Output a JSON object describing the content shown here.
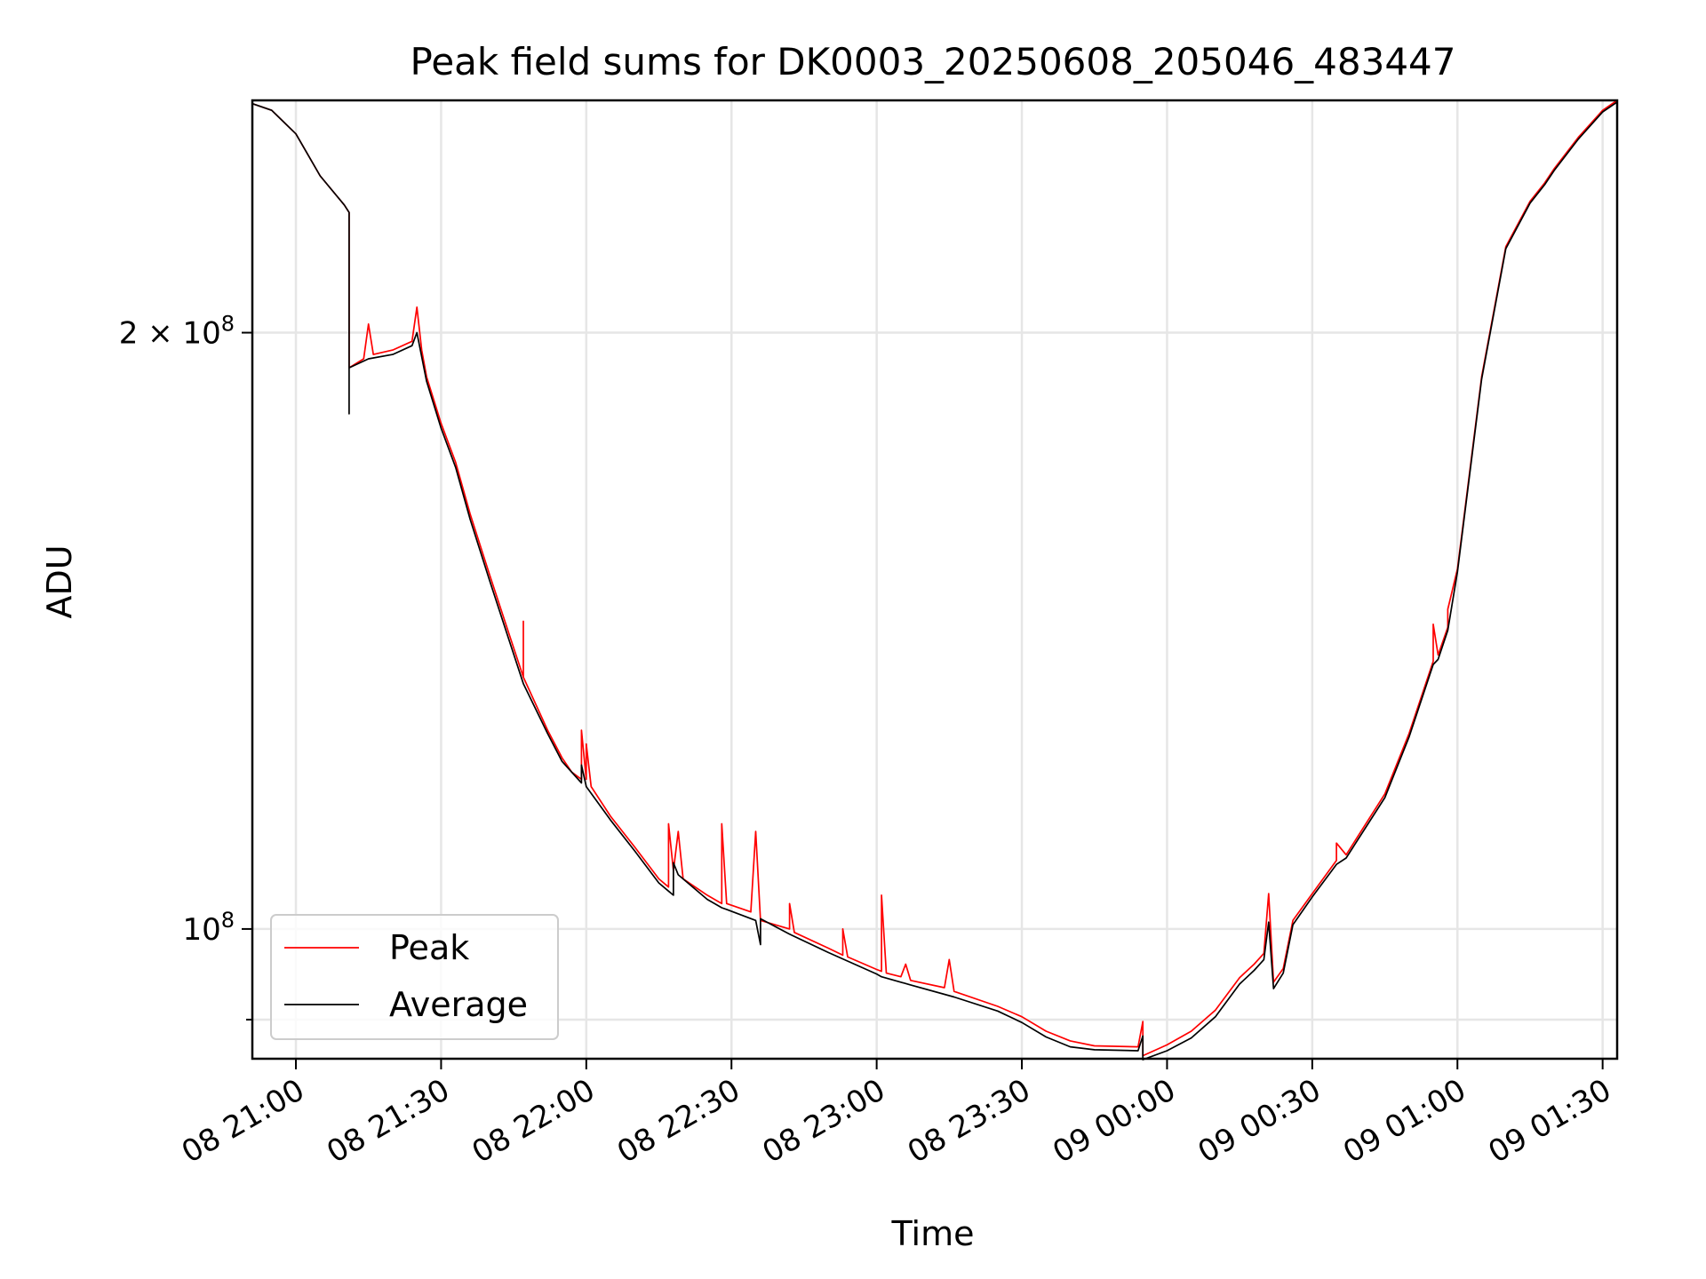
{
  "chart_data": {
    "type": "line",
    "title": "Peak field sums for DK0003_20250608_205046_483447",
    "xlabel": "Time",
    "ylabel": "ADU",
    "x_scale": "time",
    "y_scale": "log",
    "xlim": [
      "2025-06-08 20:51",
      "2025-06-09 01:33"
    ],
    "ylim": [
      86000000,
      262000000
    ],
    "grid": true,
    "legend": "lower-left",
    "x_ticks": [
      {
        "value": "2025-06-08 21:00",
        "label": "08 21:00"
      },
      {
        "value": "2025-06-08 21:30",
        "label": "08 21:30"
      },
      {
        "value": "2025-06-08 22:00",
        "label": "08 22:00"
      },
      {
        "value": "2025-06-08 22:30",
        "label": "08 22:30"
      },
      {
        "value": "2025-06-08 23:00",
        "label": "08 23:00"
      },
      {
        "value": "2025-06-08 23:30",
        "label": "08 23:30"
      },
      {
        "value": "2025-06-09 00:00",
        "label": "09 00:00"
      },
      {
        "value": "2025-06-09 00:30",
        "label": "09 00:30"
      },
      {
        "value": "2025-06-09 01:00",
        "label": "09 01:00"
      },
      {
        "value": "2025-06-09 01:30",
        "label": "09 01:30"
      }
    ],
    "y_ticks": [
      {
        "value": 100000000,
        "base": "10",
        "exp": "8",
        "coef": ""
      },
      {
        "value": 200000000,
        "base": "10",
        "exp": "8",
        "coef": "2 × "
      }
    ],
    "y_minor_ticks": [
      90000000
    ],
    "series": [
      {
        "name": "Peak",
        "color": "#ff0000",
        "points": [
          [
            "2025-06-08 20:51",
            261000000
          ],
          [
            "2025-06-08 20:55",
            259000000
          ],
          [
            "2025-06-08 21:00",
            252000000
          ],
          [
            "2025-06-08 21:05",
            240000000
          ],
          [
            "2025-06-08 21:10",
            232000000
          ],
          [
            "2025-06-08 21:11",
            230000000
          ],
          [
            "2025-06-08 21:11",
            192000000
          ],
          [
            "2025-06-08 21:14",
            194000000
          ],
          [
            "2025-06-08 21:15",
            202000000
          ],
          [
            "2025-06-08 21:16",
            195000000
          ],
          [
            "2025-06-08 21:20",
            196000000
          ],
          [
            "2025-06-08 21:24",
            198000000
          ],
          [
            "2025-06-08 21:25",
            206000000
          ],
          [
            "2025-06-08 21:26",
            196000000
          ],
          [
            "2025-06-08 21:27",
            190000000
          ],
          [
            "2025-06-08 21:30",
            180000000
          ],
          [
            "2025-06-08 21:33",
            172000000
          ],
          [
            "2025-06-08 21:36",
            162000000
          ],
          [
            "2025-06-08 21:40",
            151000000
          ],
          [
            "2025-06-08 21:44",
            141000000
          ],
          [
            "2025-06-08 21:47",
            134000000
          ],
          [
            "2025-06-08 21:47",
            143000000
          ],
          [
            "2025-06-08 21:47",
            134000000
          ],
          [
            "2025-06-08 21:52",
            126000000
          ],
          [
            "2025-06-08 21:55",
            122000000
          ],
          [
            "2025-06-08 21:57",
            120000000
          ],
          [
            "2025-06-08 21:59",
            119000000
          ],
          [
            "2025-06-08 21:59",
            126000000
          ],
          [
            "2025-06-08 22:00",
            119000000
          ],
          [
            "2025-06-08 22:00",
            124000000
          ],
          [
            "2025-06-08 22:01",
            118000000
          ],
          [
            "2025-06-08 22:05",
            114000000
          ],
          [
            "2025-06-08 22:10",
            110000000
          ],
          [
            "2025-06-08 22:15",
            106000000
          ],
          [
            "2025-06-08 22:17",
            105000000
          ],
          [
            "2025-06-08 22:17",
            113000000
          ],
          [
            "2025-06-08 22:18",
            107000000
          ],
          [
            "2025-06-08 22:19",
            112000000
          ],
          [
            "2025-06-08 22:20",
            106000000
          ],
          [
            "2025-06-08 22:25",
            104000000
          ],
          [
            "2025-06-08 22:28",
            103000000
          ],
          [
            "2025-06-08 22:28",
            113000000
          ],
          [
            "2025-06-08 22:29",
            103000000
          ],
          [
            "2025-06-08 22:34",
            102000000
          ],
          [
            "2025-06-08 22:35",
            112000000
          ],
          [
            "2025-06-08 22:36",
            101000000
          ],
          [
            "2025-06-08 22:42",
            100000000
          ],
          [
            "2025-06-08 22:42",
            103000000
          ],
          [
            "2025-06-08 22:43",
            99600000
          ],
          [
            "2025-06-08 22:50",
            97800000
          ],
          [
            "2025-06-08 22:53",
            97000000
          ],
          [
            "2025-06-08 22:53",
            100000000
          ],
          [
            "2025-06-08 22:54",
            96800000
          ],
          [
            "2025-06-08 23:00",
            95400000
          ],
          [
            "2025-06-08 23:01",
            95200000
          ],
          [
            "2025-06-08 23:01",
            104000000
          ],
          [
            "2025-06-08 23:02",
            95000000
          ],
          [
            "2025-06-08 23:05",
            94600000
          ],
          [
            "2025-06-08 23:06",
            96000000
          ],
          [
            "2025-06-08 23:07",
            94200000
          ],
          [
            "2025-06-08 23:14",
            93400000
          ],
          [
            "2025-06-08 23:15",
            96500000
          ],
          [
            "2025-06-08 23:16",
            93000000
          ],
          [
            "2025-06-08 23:25",
            91400000
          ],
          [
            "2025-06-08 23:30",
            90300000
          ],
          [
            "2025-06-08 23:35",
            88800000
          ],
          [
            "2025-06-08 23:40",
            87800000
          ],
          [
            "2025-06-08 23:45",
            87300000
          ],
          [
            "2025-06-08 23:54",
            87200000
          ],
          [
            "2025-06-08 23:55",
            89800000
          ],
          [
            "2025-06-08 23:55",
            86300000
          ],
          [
            "2025-06-09 00:00",
            87400000
          ],
          [
            "2025-06-09 00:05",
            88800000
          ],
          [
            "2025-06-09 00:10",
            91000000
          ],
          [
            "2025-06-09 00:15",
            94500000
          ],
          [
            "2025-06-09 00:18",
            96000000
          ],
          [
            "2025-06-09 00:20",
            97200000
          ],
          [
            "2025-06-09 00:21",
            104200000
          ],
          [
            "2025-06-09 00:22",
            94000000
          ],
          [
            "2025-06-09 00:24",
            95500000
          ],
          [
            "2025-06-09 00:26",
            101000000
          ],
          [
            "2025-06-09 00:30",
            104200000
          ],
          [
            "2025-06-09 00:35",
            108300000
          ],
          [
            "2025-06-09 00:35",
            110500000
          ],
          [
            "2025-06-09 00:37",
            109000000
          ],
          [
            "2025-06-09 00:45",
            117000000
          ],
          [
            "2025-06-09 00:50",
            125500000
          ],
          [
            "2025-06-09 00:55",
            136500000
          ],
          [
            "2025-06-09 00:55",
            142500000
          ],
          [
            "2025-06-09 00:56",
            137500000
          ],
          [
            "2025-06-09 00:58",
            142000000
          ],
          [
            "2025-06-09 00:58",
            145000000
          ],
          [
            "2025-06-09 01:00",
            152000000
          ],
          [
            "2025-06-09 01:05",
            190000000
          ],
          [
            "2025-06-09 01:10",
            221000000
          ],
          [
            "2025-06-09 01:15",
            233000000
          ],
          [
            "2025-06-09 01:18",
            238000000
          ],
          [
            "2025-06-09 01:20",
            242000000
          ],
          [
            "2025-06-09 01:25",
            251000000
          ],
          [
            "2025-06-09 01:30",
            259000000
          ],
          [
            "2025-06-09 01:33",
            262000000
          ]
        ]
      },
      {
        "name": "Average",
        "color": "#000000",
        "points": [
          [
            "2025-06-08 20:51",
            261000000
          ],
          [
            "2025-06-08 20:55",
            259000000
          ],
          [
            "2025-06-08 21:00",
            252000000
          ],
          [
            "2025-06-08 21:05",
            240000000
          ],
          [
            "2025-06-08 21:10",
            232000000
          ],
          [
            "2025-06-08 21:11",
            230000000
          ],
          [
            "2025-06-08 21:11",
            182000000
          ],
          [
            "2025-06-08 21:11",
            192000000
          ],
          [
            "2025-06-08 21:15",
            194000000
          ],
          [
            "2025-06-08 21:20",
            195000000
          ],
          [
            "2025-06-08 21:24",
            197000000
          ],
          [
            "2025-06-08 21:25",
            200000000
          ],
          [
            "2025-06-08 21:27",
            189000000
          ],
          [
            "2025-06-08 21:30",
            179000000
          ],
          [
            "2025-06-08 21:33",
            171000000
          ],
          [
            "2025-06-08 21:36",
            161000000
          ],
          [
            "2025-06-08 21:40",
            150000000
          ],
          [
            "2025-06-08 21:44",
            140000000
          ],
          [
            "2025-06-08 21:47",
            133000000
          ],
          [
            "2025-06-08 21:52",
            125500000
          ],
          [
            "2025-06-08 21:55",
            121500000
          ],
          [
            "2025-06-08 21:59",
            118500000
          ],
          [
            "2025-06-08 21:59",
            121000000
          ],
          [
            "2025-06-08 22:00",
            118000000
          ],
          [
            "2025-06-08 22:05",
            113500000
          ],
          [
            "2025-06-08 22:10",
            109500000
          ],
          [
            "2025-06-08 22:15",
            105500000
          ],
          [
            "2025-06-08 22:17",
            104500000
          ],
          [
            "2025-06-08 22:18",
            104000000
          ],
          [
            "2025-06-08 22:18",
            108000000
          ],
          [
            "2025-06-08 22:19",
            106500000
          ],
          [
            "2025-06-08 22:25",
            103500000
          ],
          [
            "2025-06-08 22:28",
            102500000
          ],
          [
            "2025-06-08 22:29",
            102300000
          ],
          [
            "2025-06-08 22:35",
            101000000
          ],
          [
            "2025-06-08 22:36",
            98200000
          ],
          [
            "2025-06-08 22:36",
            101200000
          ],
          [
            "2025-06-08 22:42",
            99400000
          ],
          [
            "2025-06-08 22:50",
            97300000
          ],
          [
            "2025-06-08 23:00",
            94900000
          ],
          [
            "2025-06-08 23:01",
            94600000
          ],
          [
            "2025-06-08 23:07",
            93700000
          ],
          [
            "2025-06-08 23:16",
            92400000
          ],
          [
            "2025-06-08 23:25",
            90900000
          ],
          [
            "2025-06-08 23:30",
            89700000
          ],
          [
            "2025-06-08 23:35",
            88200000
          ],
          [
            "2025-06-08 23:40",
            87200000
          ],
          [
            "2025-06-08 23:45",
            86900000
          ],
          [
            "2025-06-08 23:54",
            86800000
          ],
          [
            "2025-06-08 23:55",
            88300000
          ],
          [
            "2025-06-08 23:55",
            85900000
          ],
          [
            "2025-06-09 00:00",
            86800000
          ],
          [
            "2025-06-09 00:05",
            88100000
          ],
          [
            "2025-06-09 00:10",
            90300000
          ],
          [
            "2025-06-09 00:15",
            93800000
          ],
          [
            "2025-06-09 00:18",
            95300000
          ],
          [
            "2025-06-09 00:20",
            96500000
          ],
          [
            "2025-06-09 00:21",
            100800000
          ],
          [
            "2025-06-09 00:22",
            93300000
          ],
          [
            "2025-06-09 00:24",
            95000000
          ],
          [
            "2025-06-09 00:26",
            100500000
          ],
          [
            "2025-06-09 00:30",
            103800000
          ],
          [
            "2025-06-09 00:35",
            107800000
          ],
          [
            "2025-06-09 00:37",
            108600000
          ],
          [
            "2025-06-09 00:45",
            116500000
          ],
          [
            "2025-06-09 00:50",
            125000000
          ],
          [
            "2025-06-09 00:55",
            136000000
          ],
          [
            "2025-06-09 00:56",
            136800000
          ],
          [
            "2025-06-09 00:58",
            141500000
          ],
          [
            "2025-06-09 01:00",
            151500000
          ],
          [
            "2025-06-09 01:05",
            189500000
          ],
          [
            "2025-06-09 01:10",
            220500000
          ],
          [
            "2025-06-09 01:15",
            232500000
          ],
          [
            "2025-06-09 01:18",
            237500000
          ],
          [
            "2025-06-09 01:20",
            241500000
          ],
          [
            "2025-06-09 01:25",
            250500000
          ],
          [
            "2025-06-09 01:30",
            258500000
          ],
          [
            "2025-06-09 01:33",
            261500000
          ]
        ]
      }
    ]
  }
}
